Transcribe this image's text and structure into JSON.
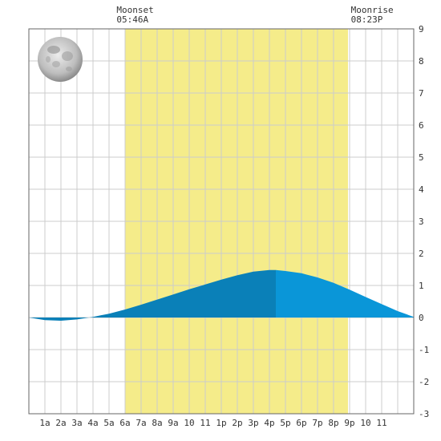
{
  "chart_data": {
    "type": "area",
    "title": "",
    "xlabel": "",
    "ylabel": "",
    "x_range_hours": [
      0,
      24
    ],
    "ylim": [
      -3,
      9
    ],
    "y_ticks": [
      9,
      8,
      7,
      6,
      5,
      4,
      3,
      2,
      1,
      0,
      -1,
      -2,
      -3
    ],
    "x_tick_labels": [
      "1a",
      "2a",
      "3a",
      "4a",
      "5a",
      "6a",
      "7a",
      "8a",
      "9a",
      "10",
      "11",
      "1p",
      "2p",
      "3p",
      "4p",
      "5p",
      "6p",
      "7p",
      "8p",
      "9p",
      "10",
      "11"
    ],
    "daylight_hours": [
      6.0,
      19.9
    ],
    "now_hour": 15.4,
    "grid": true,
    "series": [
      {
        "x": [
          0,
          1,
          2,
          3,
          4,
          5,
          6,
          7,
          8,
          9,
          10,
          11,
          12,
          13,
          14,
          15,
          15.4,
          16,
          17,
          18,
          19,
          20,
          21,
          22,
          23,
          24
        ],
        "y": [
          0.0,
          -0.08,
          -0.1,
          -0.06,
          0.02,
          0.12,
          0.25,
          0.4,
          0.56,
          0.72,
          0.88,
          1.03,
          1.18,
          1.32,
          1.43,
          1.48,
          1.48,
          1.45,
          1.38,
          1.25,
          1.08,
          0.87,
          0.64,
          0.42,
          0.2,
          0.02
        ]
      }
    ],
    "annotations": [
      {
        "label": "Moonset",
        "time": "05:46A",
        "hour": 5.77
      },
      {
        "label": "Moonrise",
        "time": "08:23P",
        "hour": 20.38
      }
    ]
  },
  "colors": {
    "daylight": "#f5ec8a",
    "grid": "#cccccc",
    "tide_past": "#0a80b8",
    "tide_future": "#0a96d8",
    "border": "#666666"
  },
  "icons": {
    "moon": "full-moon-icon"
  }
}
